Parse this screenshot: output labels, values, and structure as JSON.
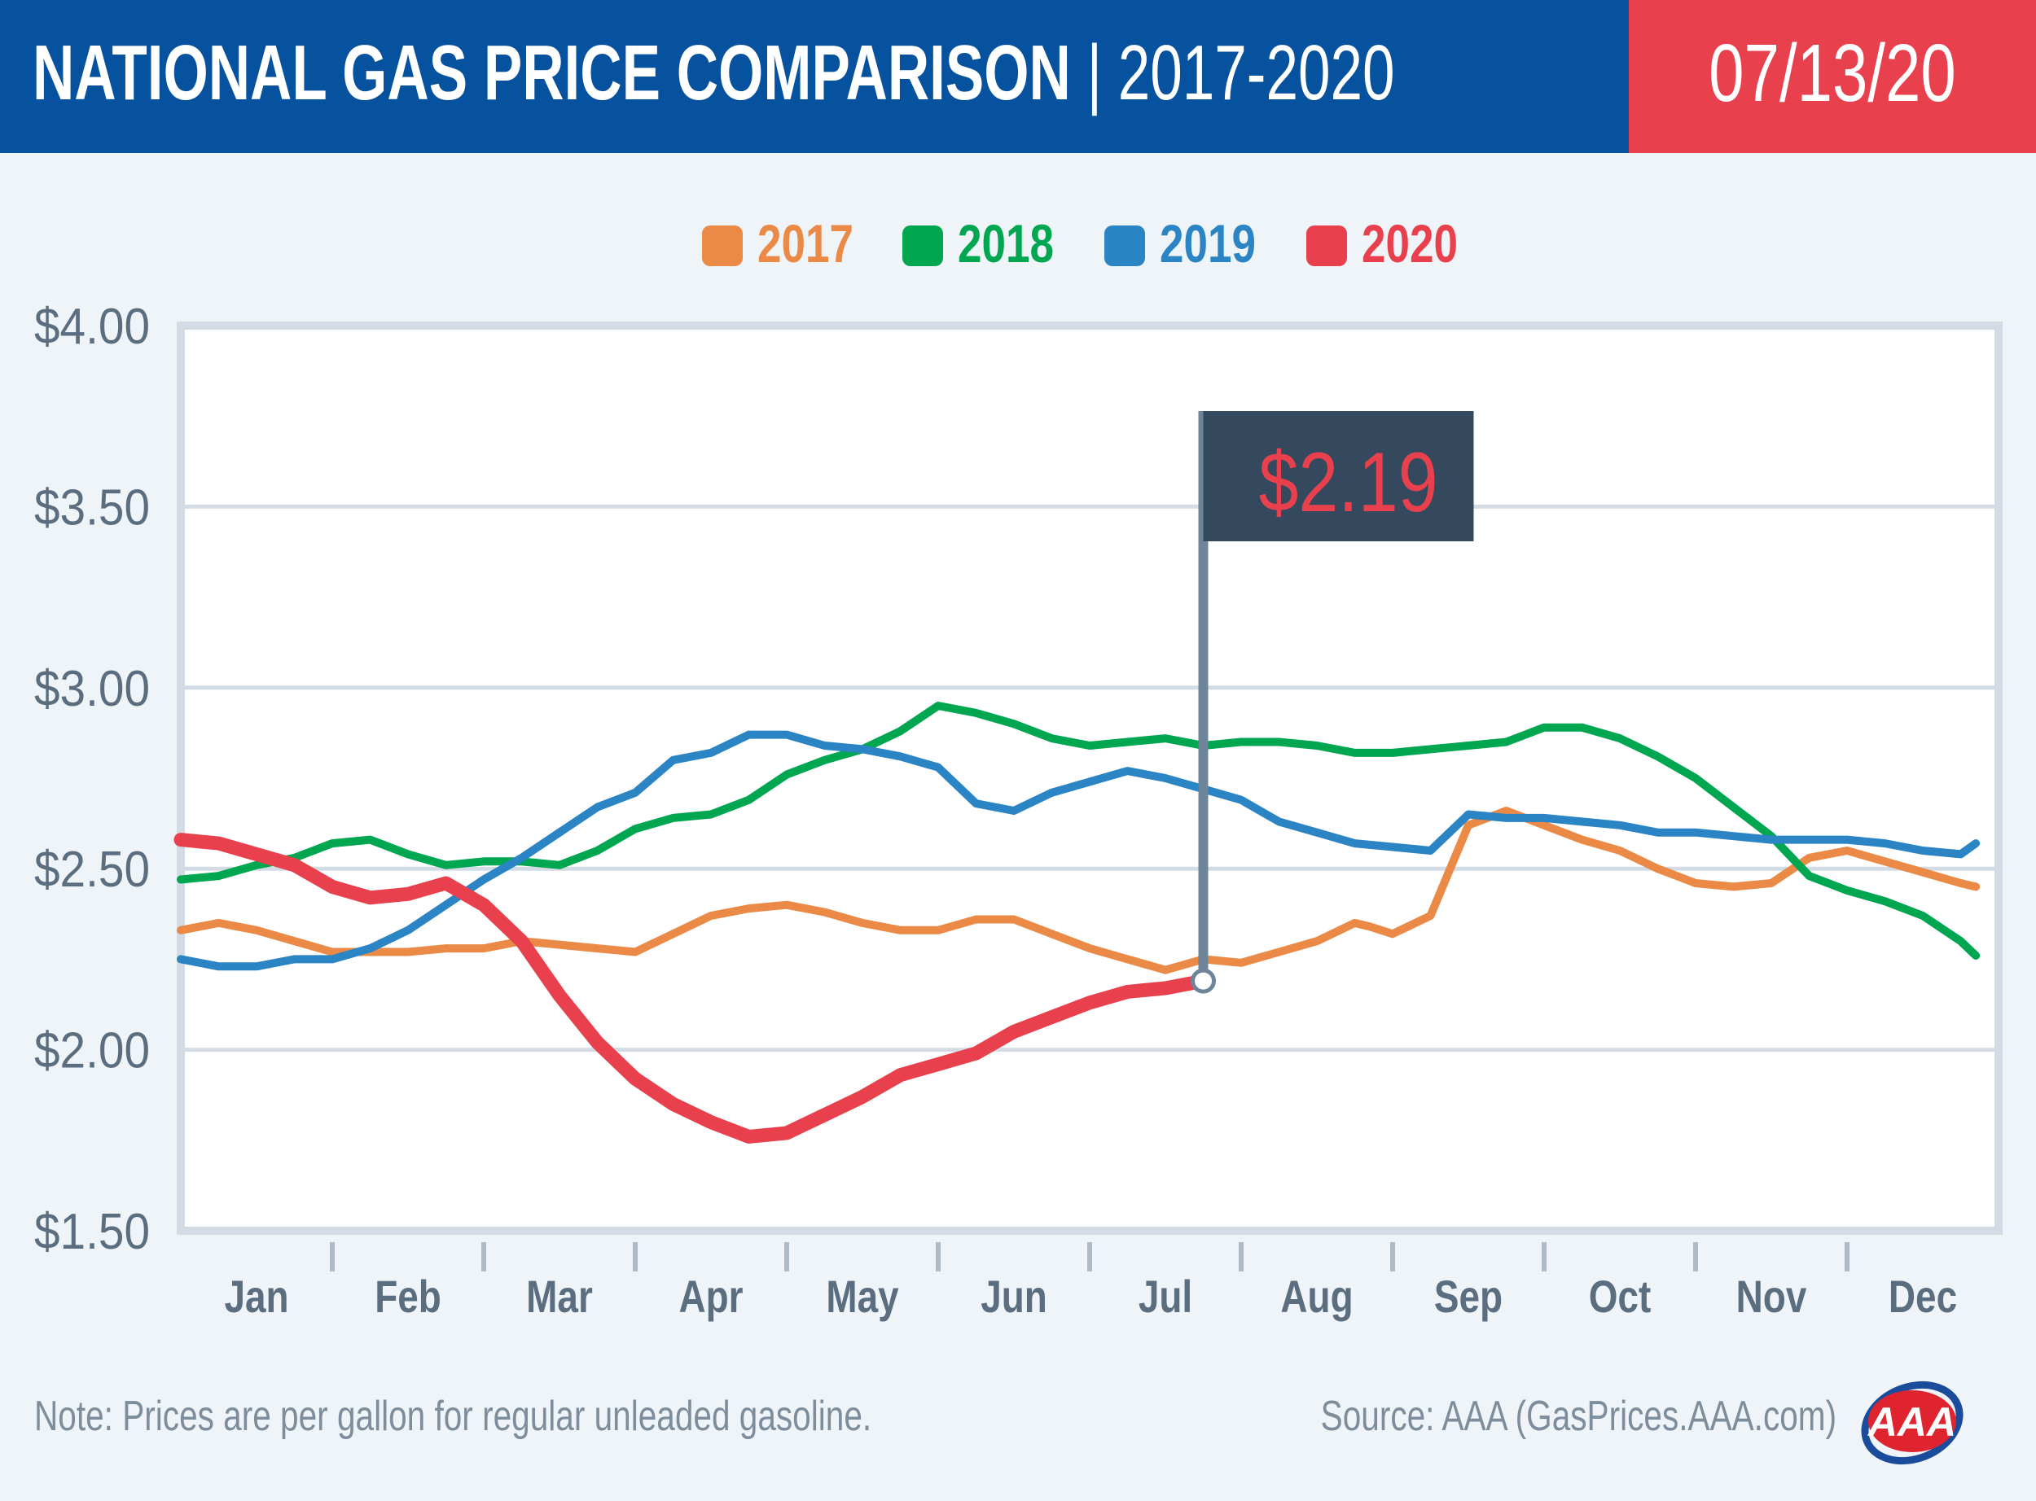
{
  "header": {
    "title_main": "NATIONAL GAS PRICE COMPARISON",
    "title_sep": " | ",
    "title_range": "2017-2020",
    "date": "07/13/20"
  },
  "colors": {
    "header_blue": "#07529e",
    "header_red": "#e8414d",
    "callout_bg": "#34495e",
    "callout_text": "#e8414d",
    "pole": "#6e8499",
    "axis_text": "#5b6e80",
    "logo_red": "#e0242f",
    "logo_blue": "#1b4c9b"
  },
  "callout": {
    "value_label": "$2.19"
  },
  "note": "Note: Prices are per gallon for regular unleaded gasoline.",
  "source": "Source: AAA (GasPrices.AAA.com)",
  "logo": {
    "text": "AAA"
  },
  "chart_data": {
    "type": "line",
    "xlabel": "",
    "ylabel": "",
    "ylim": [
      1.5,
      4.0
    ],
    "xlim": [
      0,
      12
    ],
    "grid": true,
    "legend_position": "top-center",
    "y_ticks": [
      4.0,
      3.5,
      3.0,
      2.5,
      2.0,
      1.5
    ],
    "y_tick_labels": [
      "$4.00",
      "$3.50",
      "$3.00",
      "$2.50",
      "$2.00",
      "$1.50"
    ],
    "categories": [
      "Jan",
      "Feb",
      "Mar",
      "Apr",
      "May",
      "Jun",
      "Jul",
      "Aug",
      "Sep",
      "Oct",
      "Nov",
      "Dec"
    ],
    "x_unit": "months since Jan 1 (one unit per month)",
    "series": [
      {
        "name": "2017",
        "color": "#ea8a46",
        "x": [
          0,
          0.25,
          0.5,
          0.75,
          1.0,
          1.25,
          1.5,
          1.75,
          2.0,
          2.25,
          2.5,
          2.75,
          3.0,
          3.25,
          3.5,
          3.75,
          4.0,
          4.25,
          4.5,
          4.75,
          5.0,
          5.25,
          5.5,
          5.75,
          6.0,
          6.25,
          6.5,
          6.75,
          7.0,
          7.25,
          7.5,
          7.75,
          7.85,
          8.0,
          8.25,
          8.5,
          8.75,
          9.0,
          9.25,
          9.5,
          9.75,
          10.0,
          10.25,
          10.5,
          10.75,
          11.0,
          11.25,
          11.5,
          11.75,
          11.85
        ],
        "y": [
          2.33,
          2.35,
          2.33,
          2.3,
          2.27,
          2.27,
          2.27,
          2.28,
          2.28,
          2.3,
          2.29,
          2.28,
          2.27,
          2.32,
          2.37,
          2.39,
          2.4,
          2.38,
          2.35,
          2.33,
          2.33,
          2.36,
          2.36,
          2.32,
          2.28,
          2.25,
          2.22,
          2.25,
          2.24,
          2.27,
          2.3,
          2.35,
          2.34,
          2.32,
          2.37,
          2.62,
          2.66,
          2.62,
          2.58,
          2.55,
          2.5,
          2.46,
          2.45,
          2.46,
          2.53,
          2.55,
          2.52,
          2.49,
          2.46,
          2.45
        ]
      },
      {
        "name": "2018",
        "color": "#00a650",
        "x": [
          0,
          0.25,
          0.5,
          0.75,
          1.0,
          1.25,
          1.5,
          1.75,
          2.0,
          2.25,
          2.5,
          2.75,
          3.0,
          3.25,
          3.5,
          3.75,
          4.0,
          4.25,
          4.5,
          4.75,
          5.0,
          5.25,
          5.5,
          5.75,
          6.0,
          6.25,
          6.5,
          6.75,
          7.0,
          7.25,
          7.5,
          7.75,
          8.0,
          8.25,
          8.5,
          8.75,
          9.0,
          9.25,
          9.5,
          9.75,
          10.0,
          10.25,
          10.5,
          10.75,
          11.0,
          11.25,
          11.5,
          11.75,
          11.85
        ],
        "y": [
          2.47,
          2.48,
          2.51,
          2.53,
          2.57,
          2.58,
          2.54,
          2.51,
          2.52,
          2.52,
          2.51,
          2.55,
          2.61,
          2.64,
          2.65,
          2.69,
          2.76,
          2.8,
          2.83,
          2.88,
          2.95,
          2.93,
          2.9,
          2.86,
          2.84,
          2.85,
          2.86,
          2.84,
          2.85,
          2.85,
          2.84,
          2.82,
          2.82,
          2.83,
          2.84,
          2.85,
          2.89,
          2.89,
          2.86,
          2.81,
          2.75,
          2.67,
          2.59,
          2.48,
          2.44,
          2.41,
          2.37,
          2.3,
          2.26
        ]
      },
      {
        "name": "2019",
        "color": "#2b84c4",
        "x": [
          0,
          0.25,
          0.5,
          0.75,
          1.0,
          1.25,
          1.5,
          1.75,
          2.0,
          2.25,
          2.5,
          2.75,
          3.0,
          3.25,
          3.5,
          3.75,
          4.0,
          4.25,
          4.5,
          4.75,
          5.0,
          5.25,
          5.5,
          5.75,
          6.0,
          6.25,
          6.5,
          6.75,
          7.0,
          7.25,
          7.5,
          7.75,
          8.0,
          8.25,
          8.5,
          8.75,
          9.0,
          9.25,
          9.5,
          9.75,
          10.0,
          10.25,
          10.5,
          10.75,
          11.0,
          11.25,
          11.5,
          11.75,
          11.85
        ],
        "y": [
          2.25,
          2.23,
          2.23,
          2.25,
          2.25,
          2.28,
          2.33,
          2.4,
          2.47,
          2.53,
          2.6,
          2.67,
          2.71,
          2.8,
          2.82,
          2.87,
          2.87,
          2.84,
          2.83,
          2.81,
          2.78,
          2.68,
          2.66,
          2.71,
          2.74,
          2.77,
          2.75,
          2.72,
          2.69,
          2.63,
          2.6,
          2.57,
          2.56,
          2.55,
          2.65,
          2.64,
          2.64,
          2.63,
          2.62,
          2.6,
          2.6,
          2.59,
          2.58,
          2.58,
          2.58,
          2.57,
          2.55,
          2.54,
          2.57
        ]
      },
      {
        "name": "2020",
        "color": "#e8414d",
        "x": [
          0,
          0.25,
          0.5,
          0.75,
          1.0,
          1.25,
          1.5,
          1.75,
          2.0,
          2.25,
          2.5,
          2.75,
          3.0,
          3.25,
          3.5,
          3.75,
          4.0,
          4.25,
          4.5,
          4.75,
          5.0,
          5.25,
          5.5,
          5.75,
          6.0,
          6.25,
          6.5,
          6.75
        ],
        "y": [
          2.58,
          2.57,
          2.54,
          2.51,
          2.45,
          2.42,
          2.43,
          2.46,
          2.4,
          2.3,
          2.15,
          2.02,
          1.92,
          1.85,
          1.8,
          1.76,
          1.77,
          1.82,
          1.87,
          1.93,
          1.96,
          1.99,
          2.05,
          2.09,
          2.13,
          2.16,
          2.17,
          2.19
        ]
      }
    ]
  }
}
